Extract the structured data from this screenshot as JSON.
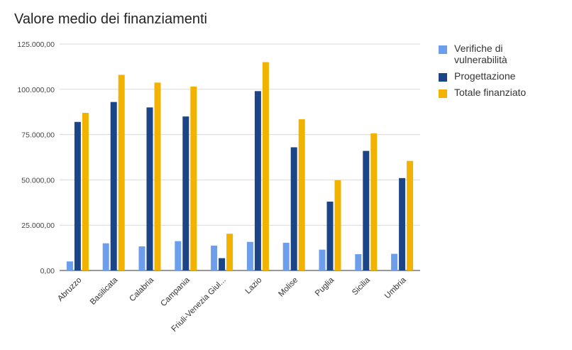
{
  "chart_data": {
    "type": "bar",
    "title": "Valore medio dei finanziamenti",
    "categories": [
      "Abruzzo",
      "Basilicata",
      "Calabria",
      "Campania",
      "Friuli-Venezia Giul...",
      "Lazio",
      "Molise",
      "Puglia",
      "Sicilia",
      "Umbria"
    ],
    "series": [
      {
        "name": "Verifiche di vulnerabilità",
        "color": "#6d9eeb",
        "values": [
          5000,
          15000,
          13300,
          16200,
          13700,
          15800,
          15300,
          11500,
          9000,
          9200
        ]
      },
      {
        "name": "Progettazione",
        "color": "#1c4587",
        "values": [
          82000,
          93000,
          90000,
          85000,
          6800,
          99000,
          68000,
          38000,
          66000,
          51000
        ]
      },
      {
        "name": "Totale finanziato",
        "color": "#f1b300",
        "values": [
          87000,
          108000,
          103700,
          101500,
          20300,
          115000,
          83500,
          49800,
          75700,
          60500
        ]
      }
    ],
    "ylim": [
      0,
      125000
    ],
    "yticks": [
      0,
      25000,
      50000,
      75000,
      100000,
      125000
    ],
    "ytick_labels": [
      "0,00",
      "25.000,00",
      "50.000,00",
      "75.000,00",
      "100.000,00",
      "125.000,00"
    ],
    "xlabel": "",
    "ylabel": "",
    "grid": true,
    "legend_position": "right"
  }
}
